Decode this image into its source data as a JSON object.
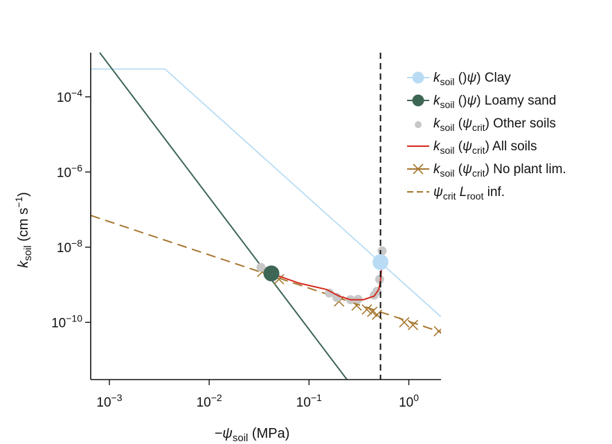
{
  "chart_data": {
    "type": "line",
    "x_scale": "log",
    "y_scale": "log",
    "xlabel": {
      "prefix": "−ψ",
      "sub": "soil",
      "suffix": " (MPa)"
    },
    "ylabel": {
      "main": "k",
      "sub": "soil",
      "unit": " (cm s",
      "sup": "−1",
      "close": ")"
    },
    "xlim": [
      0.00065,
      2.1
    ],
    "ylim": [
      3e-12,
      0.0015
    ],
    "x_ticks": [
      {
        "value": 0.001,
        "base": "10",
        "exp": "−3"
      },
      {
        "value": 0.01,
        "base": "10",
        "exp": "−2"
      },
      {
        "value": 0.1,
        "base": "10",
        "exp": "−1"
      },
      {
        "value": 1,
        "base": "10",
        "exp": "0"
      }
    ],
    "y_ticks": [
      {
        "value": 0.0001,
        "base": "10",
        "exp": "−4"
      },
      {
        "value": 1e-06,
        "base": "10",
        "exp": "−6"
      },
      {
        "value": 1e-08,
        "base": "10",
        "exp": "−8"
      },
      {
        "value": 1e-10,
        "base": "10",
        "exp": "−10"
      }
    ],
    "grid": false,
    "legend_position": "right",
    "vline": {
      "x": 0.52,
      "style": "dashed",
      "color": "#111111"
    },
    "series": [
      {
        "name": {
          "k": "k",
          "sub": "soil",
          "paren": " (ψ)",
          "rest": " Clay"
        },
        "kind": "line-marker",
        "color": "#b9dcf4",
        "points": [
          [
            0.00065,
            0.00055
          ],
          [
            0.0036,
            0.00055
          ],
          [
            2.1,
            1.4e-10
          ]
        ],
        "marker": [
          0.52,
          4e-09
        ]
      },
      {
        "name": {
          "k": "k",
          "sub": "soil",
          "paren": " (ψ)",
          "rest": " Loamy sand"
        },
        "kind": "line-marker",
        "color": "#3e6655",
        "points": [
          [
            0.0008,
            0.0015
          ],
          [
            0.24,
            3e-12
          ]
        ],
        "marker": [
          0.042,
          2e-09
        ]
      },
      {
        "name": {
          "k": "k",
          "sub": "soil",
          "paren": " (ψ",
          "psub": "crit",
          "close": ")",
          "rest": " Other soils"
        },
        "kind": "scatter",
        "color": "#c8c8c8",
        "points": [
          [
            0.033,
            2.9e-09
          ],
          [
            0.16,
            6e-10
          ],
          [
            0.19,
            4.6e-10
          ],
          [
            0.26,
            4e-10
          ],
          [
            0.31,
            4.1e-10
          ],
          [
            0.45,
            5.3e-10
          ],
          [
            0.48,
            6.7e-10
          ],
          [
            0.51,
            1.4e-09
          ],
          [
            0.54,
            8e-09
          ]
        ]
      },
      {
        "name": {
          "k": "k",
          "sub": "soil",
          "paren": " (ψ",
          "psub": "crit",
          "close": ")",
          "rest": " All soils"
        },
        "kind": "line",
        "color": "#d42a1e",
        "points": [
          [
            0.042,
            2e-09
          ],
          [
            0.08,
            1.1e-09
          ],
          [
            0.15,
            7.5e-10
          ],
          [
            0.2,
            5e-10
          ],
          [
            0.26,
            4e-10
          ],
          [
            0.35,
            4e-10
          ],
          [
            0.45,
            5e-10
          ],
          [
            0.5,
            7.5e-10
          ],
          [
            0.52,
            1.3e-09
          ],
          [
            0.535,
            3.2e-09
          ]
        ]
      },
      {
        "name": {
          "k": "k",
          "sub": "soil",
          "paren": " (ψ",
          "psub": "crit",
          "close": ")",
          "rest": " No plant lim."
        },
        "kind": "cross",
        "color": "#a6772e",
        "points": [
          [
            0.034,
            2.2e-09
          ],
          [
            0.05,
            1.4e-09
          ],
          [
            0.2,
            3.6e-10
          ],
          [
            0.3,
            2.8e-10
          ],
          [
            0.38,
            2.2e-10
          ],
          [
            0.43,
            1.9e-10
          ],
          [
            0.48,
            1.6e-10
          ],
          [
            0.9,
            1e-10
          ],
          [
            1.1,
            8.5e-11
          ],
          [
            2.0,
            5.8e-11
          ]
        ]
      },
      {
        "name": {
          "psi": "ψ",
          "psub": "crit",
          "l": " L",
          "lsub": "root",
          "rest": " inf."
        },
        "kind": "dashed",
        "color": "#a6772e",
        "points": [
          [
            0.00065,
            7e-08
          ],
          [
            2.1,
            5.5e-11
          ]
        ]
      }
    ]
  }
}
